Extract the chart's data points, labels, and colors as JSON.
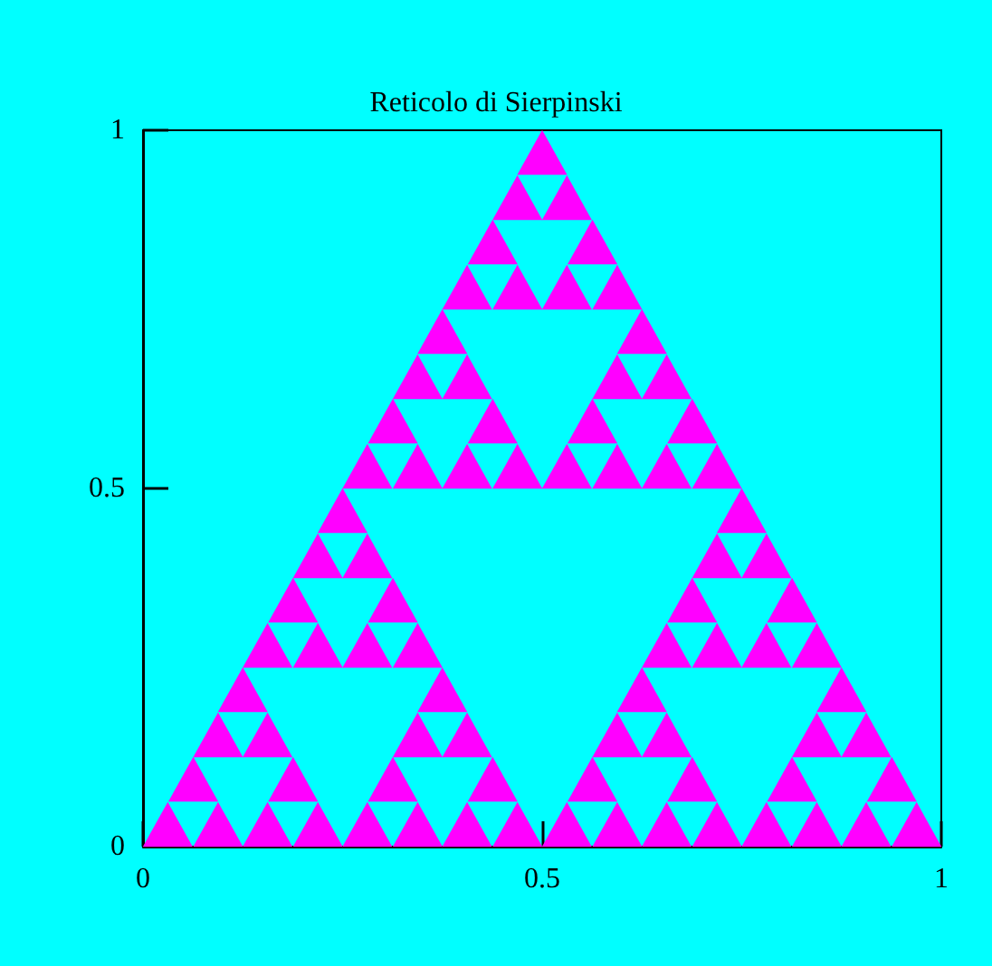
{
  "chart_data": {
    "type": "scatter",
    "title": "Reticolo di Sierpinski",
    "marker": "triangle",
    "xlim": [
      0,
      1
    ],
    "ylim": [
      0,
      1
    ],
    "xticks": [
      0,
      0.5,
      1
    ],
    "yticks": [
      0,
      0.5,
      1
    ],
    "x": [
      0.031,
      0.094,
      0.063,
      0.156,
      0.219,
      0.188,
      0.094,
      0.156,
      0.125,
      0.281,
      0.344,
      0.313,
      0.406,
      0.469,
      0.438,
      0.344,
      0.406,
      0.375,
      0.156,
      0.219,
      0.188,
      0.281,
      0.344,
      0.313,
      0.219,
      0.281,
      0.25,
      0.531,
      0.594,
      0.563,
      0.656,
      0.719,
      0.688,
      0.594,
      0.656,
      0.625,
      0.781,
      0.844,
      0.813,
      0.906,
      0.969,
      0.938,
      0.844,
      0.906,
      0.875,
      0.656,
      0.719,
      0.688,
      0.781,
      0.844,
      0.813,
      0.719,
      0.781,
      0.75,
      0.281,
      0.344,
      0.313,
      0.406,
      0.469,
      0.438,
      0.344,
      0.406,
      0.375,
      0.531,
      0.594,
      0.563,
      0.656,
      0.719,
      0.688,
      0.594,
      0.656,
      0.625,
      0.406,
      0.469,
      0.438,
      0.531,
      0.594,
      0.563,
      0.469,
      0.531,
      0.5
    ],
    "series": [
      {
        "color": "#ff00ff",
        "values": [
          0.031,
          0.031,
          0.094,
          0.031,
          0.031,
          0.094,
          0.156,
          0.156,
          0.219,
          0.031,
          0.031,
          0.094,
          0.031,
          0.031,
          0.094,
          0.156,
          0.156,
          0.219,
          0.281,
          0.281,
          0.344,
          0.281,
          0.281,
          0.344,
          0.406,
          0.406,
          0.469,
          0.031,
          0.031,
          0.094,
          0.031,
          0.031,
          0.094,
          0.156,
          0.156,
          0.219,
          0.031,
          0.031,
          0.094,
          0.031,
          0.031,
          0.094,
          0.156,
          0.156,
          0.219,
          0.281,
          0.281,
          0.344,
          0.281,
          0.281,
          0.344,
          0.406,
          0.406,
          0.469,
          0.531,
          0.531,
          0.594,
          0.531,
          0.531,
          0.594,
          0.656,
          0.656,
          0.719,
          0.531,
          0.531,
          0.594,
          0.531,
          0.531,
          0.594,
          0.656,
          0.656,
          0.719,
          0.781,
          0.781,
          0.844,
          0.781,
          0.781,
          0.844,
          0.906,
          0.906,
          0.969
        ]
      }
    ]
  }
}
